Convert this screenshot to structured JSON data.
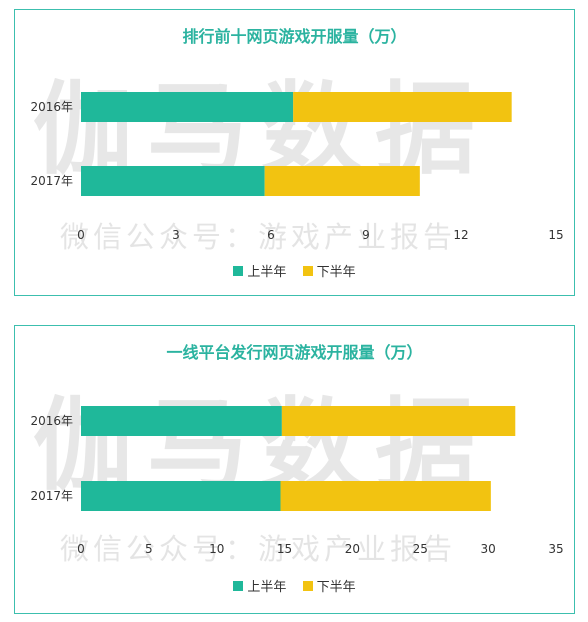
{
  "watermark": {
    "brand": "伽马数据",
    "subline": "微信公众号：游戏产业报告"
  },
  "colors": {
    "border": "#3cbfae",
    "title": "#2bb3a0",
    "first_half": "#1fb89a",
    "second_half": "#f2c311"
  },
  "chart_data": [
    {
      "type": "bar",
      "orientation": "horizontal",
      "stacked": true,
      "title": "排行前十网页游戏开服量（万）",
      "categories": [
        "2016年",
        "2017年"
      ],
      "series": [
        {
          "name": "上半年",
          "values": [
            6.7,
            5.8
          ]
        },
        {
          "name": "下半年",
          "values": [
            6.9,
            4.9
          ]
        }
      ],
      "xlim": [
        0,
        15
      ],
      "xticks": [
        "0",
        "3",
        "6",
        "9",
        "12",
        "15"
      ],
      "legend": "bottom"
    },
    {
      "type": "bar",
      "orientation": "horizontal",
      "stacked": true,
      "title": "一线平台发行网页游戏开服量（万）",
      "categories": [
        "2016年",
        "2017年"
      ],
      "series": [
        {
          "name": "上半年",
          "values": [
            14.8,
            14.7
          ]
        },
        {
          "name": "下半年",
          "values": [
            17.2,
            15.5
          ]
        }
      ],
      "xlim": [
        0,
        35
      ],
      "xticks": [
        "0",
        "5",
        "10",
        "15",
        "20",
        "25",
        "30",
        "35"
      ],
      "legend": "bottom"
    }
  ]
}
